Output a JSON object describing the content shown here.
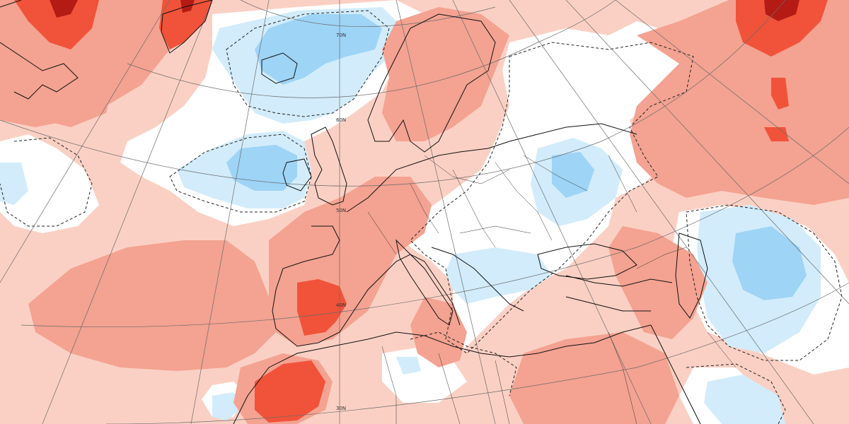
{
  "map": {
    "latitude_labels": [
      "70N",
      "60N",
      "50N",
      "40N",
      "30N"
    ],
    "colors": {
      "warm_weak": "#fbd0c4",
      "warm_moderate": "#f4a291",
      "warm_strong": "#f0533a",
      "warm_extreme": "#b41b15",
      "cold_weak": "#d2ecfb",
      "cold_moderate": "#9ed4f6",
      "neutral": "#ffffff"
    }
  }
}
